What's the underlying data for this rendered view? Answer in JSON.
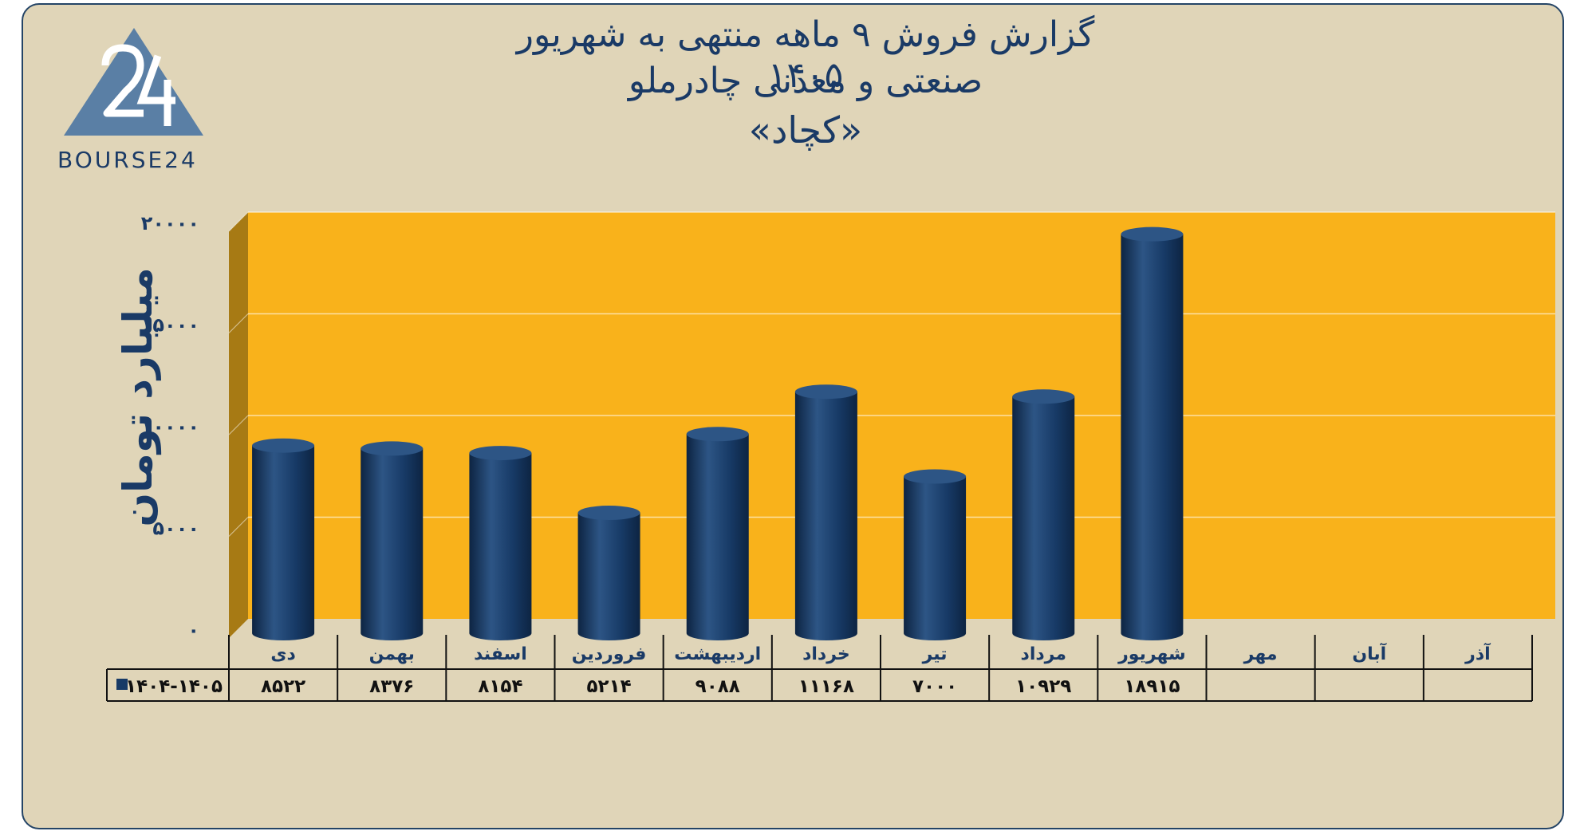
{
  "header": {
    "title_line1": "گزارش  فروش ۹ ماهه منتهی به شهریور ۱۴۰۵",
    "title_line2": "صنعتی و معدنی چادرملو",
    "title_line3": "«کچاد»",
    "logo_text": "BOURSE24",
    "logo_mark": "24"
  },
  "colors": {
    "plot_bg": "#f9b21b",
    "plot_side": "#a77a14",
    "bar": "#173a66",
    "bar_highlight": "#2d5585",
    "bar_shade": "#0d2442",
    "text": "#1a3a66",
    "logo": "#5a7fa5"
  },
  "chart_data": {
    "type": "bar",
    "ylabel": "میلیارد تومان",
    "ylim": [
      0,
      20000
    ],
    "yticks": [
      "۰",
      "۵۰۰۰",
      "۱۰۰۰۰",
      "۱۵۰۰۰",
      "۲۰۰۰۰"
    ],
    "categories": [
      "دی",
      "بهمن",
      "اسفند",
      "فروردین",
      "اردیبهشت",
      "خرداد",
      "تیر",
      "مرداد",
      "شهریور",
      "مهر",
      "آبان",
      "آذر"
    ],
    "series": [
      {
        "name": "۱۴۰۴-۱۴۰۵",
        "values": [
          8522,
          8376,
          8154,
          5214,
          9088,
          11168,
          7000,
          10929,
          18915,
          null,
          null,
          null
        ],
        "labels": [
          "۸۵۲۲",
          "۸۳۷۶",
          "۸۱۵۴",
          "۵۲۱۴",
          "۹۰۸۸",
          "۱۱۱۶۸",
          "۷۰۰۰",
          "۱۰۹۲۹",
          "۱۸۹۱۵",
          "",
          "",
          ""
        ]
      }
    ],
    "grid": true,
    "legend": "data-table"
  }
}
